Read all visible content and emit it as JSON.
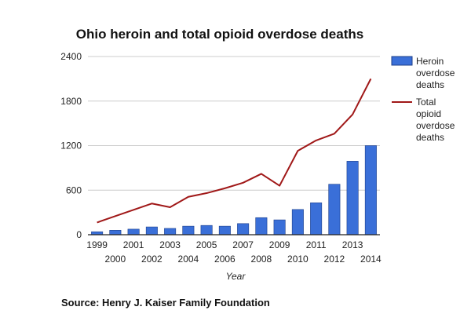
{
  "chart_data": {
    "type": "bar",
    "title": "Ohio heroin and total opioid overdose deaths",
    "xlabel": "Year",
    "ylabel": "",
    "ylim": [
      0,
      2400
    ],
    "yticks": [
      "0",
      "600",
      "1200",
      "1800",
      "2400"
    ],
    "ytick_values": [
      0,
      600,
      1200,
      1800,
      2400
    ],
    "grid": true,
    "legend_position": "right",
    "categories": [
      "1999",
      "2000",
      "2001",
      "2002",
      "2003",
      "2004",
      "2005",
      "2006",
      "2007",
      "2008",
      "2009",
      "2010",
      "2011",
      "2012",
      "2013",
      "2014"
    ],
    "series": [
      {
        "name": "Heroin overdose deaths",
        "legend_lines": [
          "Heroin",
          "overdose",
          "deaths"
        ],
        "type": "bar",
        "color": "#3a6fd8",
        "values": [
          40,
          60,
          75,
          105,
          85,
          115,
          125,
          115,
          150,
          230,
          200,
          340,
          430,
          680,
          990,
          1200
        ]
      },
      {
        "name": "Total opioid overdose deaths",
        "legend_lines": [
          "Total",
          "opioid",
          "overdose",
          "deaths"
        ],
        "type": "line",
        "color": "#a01818",
        "values": [
          165,
          250,
          335,
          420,
          370,
          510,
          560,
          625,
          700,
          820,
          660,
          1130,
          1270,
          1360,
          1620,
          2100
        ]
      }
    ],
    "source": "Source: Henry J. Kaiser Family Foundation"
  }
}
